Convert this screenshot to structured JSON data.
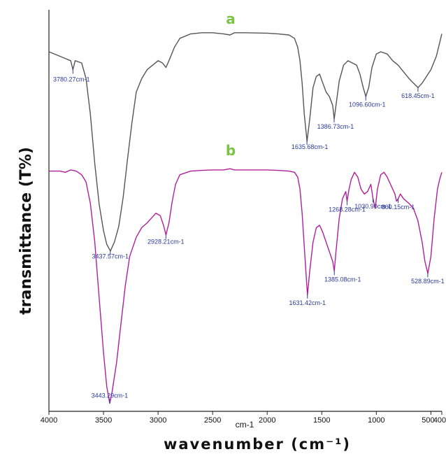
{
  "chart_data": {
    "type": "line",
    "xlabel": "wavenumber (cm⁻¹)",
    "xunit_label": "cm-1",
    "ylabel": "transmittance (T%)",
    "xlim": [
      4000,
      400
    ],
    "x_reversed": true,
    "y_axis_ticks_shown": false,
    "grid": false,
    "x_ticks": [
      4000,
      3500,
      3000,
      2500,
      2000,
      1500,
      1000,
      500,
      400
    ],
    "colors": {
      "a": "#555555",
      "b": "#b0209a",
      "tag": "#7cc243",
      "peak_label": "#2a3a9a"
    },
    "series": [
      {
        "name": "a",
        "x": [
          4000,
          3900,
          3850,
          3800,
          3780,
          3760,
          3700,
          3660,
          3620,
          3580,
          3540,
          3500,
          3470,
          3437,
          3400,
          3360,
          3320,
          3280,
          3240,
          3200,
          3150,
          3100,
          3050,
          3000,
          2960,
          2928,
          2900,
          2850,
          2800,
          2700,
          2600,
          2500,
          2400,
          2340,
          2300,
          2200,
          2000,
          1900,
          1800,
          1750,
          1720,
          1700,
          1680,
          1660,
          1635,
          1610,
          1580,
          1550,
          1520,
          1490,
          1460,
          1430,
          1400,
          1386,
          1370,
          1340,
          1300,
          1260,
          1220,
          1180,
          1150,
          1120,
          1096,
          1070,
          1040,
          1000,
          960,
          900,
          850,
          800,
          750,
          700,
          660,
          618,
          580,
          540,
          500,
          450,
          420,
          400
        ],
        "y": [
          90,
          88,
          87,
          86,
          82,
          86,
          85,
          78,
          62,
          40,
          22,
          10,
          4,
          1,
          5,
          12,
          25,
          42,
          58,
          72,
          78,
          82,
          84,
          86,
          85,
          83,
          86,
          92,
          96,
          98,
          98.5,
          98.5,
          98,
          97.5,
          98.5,
          98.5,
          98.3,
          98,
          97.5,
          96,
          92,
          86,
          76,
          62,
          50,
          60,
          74,
          79,
          80,
          76,
          72,
          70,
          66,
          60,
          66,
          77,
          84,
          86,
          85,
          84,
          80,
          74,
          70,
          74,
          83,
          89,
          90,
          89,
          86,
          84,
          81,
          78,
          76,
          74,
          76,
          79,
          82,
          88,
          94,
          98
        ]
      },
      {
        "name": "b",
        "x": [
          4000,
          3900,
          3850,
          3800,
          3750,
          3700,
          3660,
          3620,
          3580,
          3540,
          3500,
          3470,
          3443,
          3420,
          3380,
          3340,
          3300,
          3260,
          3200,
          3150,
          3100,
          3060,
          3020,
          2980,
          2950,
          2928,
          2900,
          2870,
          2840,
          2800,
          2700,
          2600,
          2500,
          2400,
          2340,
          2300,
          2200,
          2000,
          1900,
          1800,
          1750,
          1720,
          1700,
          1680,
          1660,
          1631,
          1610,
          1580,
          1550,
          1520,
          1490,
          1460,
          1430,
          1400,
          1385,
          1370,
          1340,
          1310,
          1280,
          1268,
          1250,
          1230,
          1200,
          1170,
          1140,
          1110,
          1080,
          1050,
          1030,
          1010,
          990,
          960,
          930,
          900,
          870,
          850,
          830,
          815,
          800,
          780,
          750,
          700,
          660,
          620,
          580,
          555,
          528,
          500,
          470,
          440,
          420,
          400
        ],
        "y": [
          97.5,
          97.5,
          97,
          98,
          97.5,
          96,
          93,
          84,
          68,
          45,
          22,
          8,
          1,
          6,
          18,
          34,
          50,
          62,
          70,
          74,
          76,
          78,
          80,
          79,
          75,
          71,
          76,
          85,
          92,
          96,
          97.5,
          97.8,
          98,
          98,
          98.5,
          98,
          98,
          98,
          97.8,
          97.5,
          97,
          95,
          90,
          80,
          66,
          46,
          56,
          68,
          74,
          75,
          72,
          68,
          64,
          60,
          56,
          64,
          78,
          86,
          89,
          85,
          90,
          94,
          97,
          95,
          90,
          88,
          89,
          92,
          86,
          82,
          90,
          96,
          97,
          95,
          92,
          90,
          88,
          85,
          86,
          88,
          86,
          84,
          82,
          77,
          68,
          60,
          55,
          62,
          78,
          90,
          94,
          97
        ]
      }
    ],
    "series_tags": {
      "a": "a",
      "b": "b"
    },
    "peak_labels": [
      {
        "series": "a",
        "x": 3780.27,
        "text": "3780.27cm-1"
      },
      {
        "series": "a",
        "x": 3437.57,
        "text": "3437.57cm-1"
      },
      {
        "series": "a",
        "x": 1635.68,
        "text": "1635.68cm-1"
      },
      {
        "series": "a",
        "x": 1386.73,
        "text": "1386.73cm-1"
      },
      {
        "series": "a",
        "x": 1096.6,
        "text": "1096.60cm-1"
      },
      {
        "series": "a",
        "x": 618.45,
        "text": "618.45cm-1"
      },
      {
        "series": "b",
        "x": 3443.29,
        "text": "3443.29cm-1"
      },
      {
        "series": "b",
        "x": 2928.21,
        "text": "2928.21cm-1"
      },
      {
        "series": "b",
        "x": 1631.42,
        "text": "1631.42cm-1"
      },
      {
        "series": "b",
        "x": 1385.08,
        "text": "1385.08cm-1"
      },
      {
        "series": "b",
        "x": 1268.28,
        "text": "1268.28cm-1"
      },
      {
        "series": "b",
        "x": 1030.9,
        "text": "1030.90cm-1"
      },
      {
        "series": "b",
        "x": 800.15,
        "text": "800.15cm-1"
      },
      {
        "series": "b",
        "x": 528.89,
        "text": "528.89cm-1"
      }
    ]
  }
}
